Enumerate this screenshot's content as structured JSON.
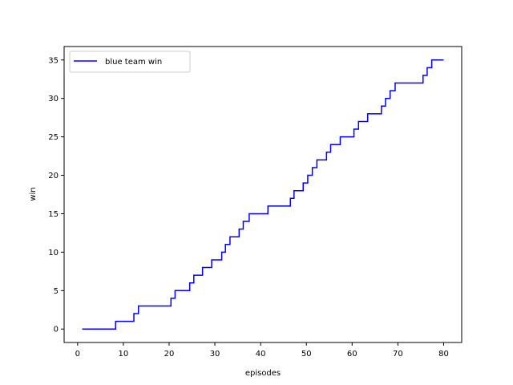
{
  "chart_data": {
    "type": "line",
    "xlabel": "episodes",
    "ylabel": "win",
    "xlim": [
      -2.95,
      83.95
    ],
    "ylim": [
      -1.75,
      36.75
    ],
    "xticks": [
      0,
      10,
      20,
      30,
      40,
      50,
      60,
      70,
      80
    ],
    "yticks": [
      0,
      5,
      10,
      15,
      20,
      25,
      30,
      35
    ],
    "grid": false,
    "legend_position": "upper-left",
    "series": [
      {
        "name": "blue team win",
        "color": "#0000ff",
        "step": "post",
        "x": [
          1,
          8.3,
          12.3,
          13.3,
          20.4,
          21.3,
          24.5,
          25.4,
          27.3,
          29.3,
          31.5,
          32.3,
          33.3,
          35.3,
          36.2,
          37.5,
          41.6,
          46.5,
          47.3,
          49.3,
          50.3,
          51.3,
          52.3,
          54.4,
          55.3,
          57.4,
          60.4,
          61.4,
          63.4,
          66.4,
          67.3,
          68.3,
          69.4,
          75.5,
          76.4,
          77.4,
          80
        ],
        "y": [
          0,
          1,
          2,
          3,
          4,
          5,
          6,
          7,
          8,
          9,
          10,
          11,
          12,
          13,
          14,
          15,
          16,
          17,
          18,
          19,
          20,
          21,
          22,
          23,
          24,
          25,
          26,
          27,
          28,
          29,
          30,
          31,
          32,
          33,
          34,
          35,
          35
        ]
      }
    ]
  }
}
